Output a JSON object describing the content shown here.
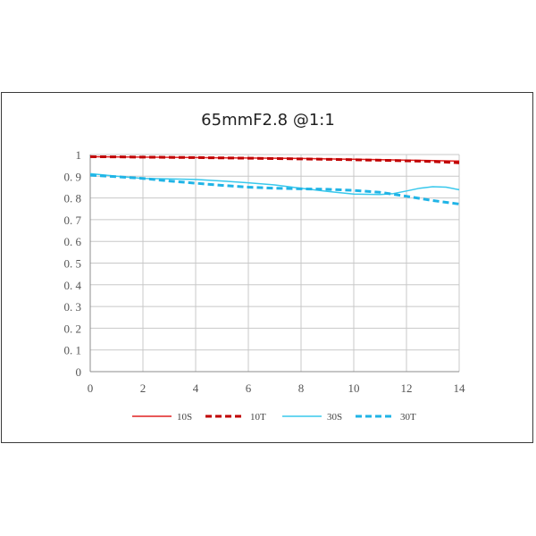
{
  "chart_data": {
    "type": "line",
    "title": "65mmF2.8 @1:1",
    "xlabel": "",
    "ylabel": "",
    "xlim": [
      0,
      14
    ],
    "ylim": [
      0,
      1
    ],
    "x_ticks": [
      0,
      2,
      4,
      6,
      8,
      10,
      12,
      14
    ],
    "y_ticks": [
      0,
      0.1,
      0.2,
      0.3,
      0.4,
      0.5,
      0.6,
      0.7,
      0.8,
      0.9,
      1
    ],
    "x_tick_labels": [
      "0",
      "2",
      "4",
      "6",
      "8",
      "10",
      "12",
      "14"
    ],
    "y_tick_labels": [
      "0",
      "0. 1",
      "0. 2",
      "0. 3",
      "0. 4",
      "0. 5",
      "0. 6",
      "0. 7",
      "0. 8",
      "0. 9",
      "1"
    ],
    "grid": true,
    "legend_position": "bottom",
    "series": [
      {
        "name": "10S",
        "color": "#e02020",
        "style": "solid",
        "x": [
          0,
          2,
          4,
          6,
          8,
          10,
          12,
          13,
          14
        ],
        "y": [
          0.99,
          0.988,
          0.986,
          0.984,
          0.982,
          0.978,
          0.974,
          0.972,
          0.97
        ]
      },
      {
        "name": "10T",
        "color": "#c00000",
        "style": "dashed",
        "x": [
          0,
          2,
          4,
          6,
          8,
          10,
          12,
          13,
          14
        ],
        "y": [
          0.99,
          0.988,
          0.986,
          0.983,
          0.98,
          0.976,
          0.971,
          0.968,
          0.962
        ]
      },
      {
        "name": "30S",
        "color": "#38c8ec",
        "style": "solid",
        "x": [
          0,
          1,
          2,
          3,
          4,
          5,
          6,
          7,
          8,
          9,
          10,
          11,
          11.5,
          12,
          12.5,
          13,
          13.5,
          14
        ],
        "y": [
          0.912,
          0.9,
          0.89,
          0.888,
          0.885,
          0.878,
          0.87,
          0.86,
          0.845,
          0.83,
          0.818,
          0.816,
          0.82,
          0.832,
          0.845,
          0.852,
          0.85,
          0.838
        ]
      },
      {
        "name": "30T",
        "color": "#20b4e6",
        "style": "dashed",
        "x": [
          0,
          1,
          2,
          3,
          4,
          5,
          6,
          7,
          8,
          9,
          10,
          11,
          12,
          13,
          14
        ],
        "y": [
          0.905,
          0.898,
          0.89,
          0.878,
          0.868,
          0.858,
          0.85,
          0.845,
          0.842,
          0.84,
          0.835,
          0.826,
          0.808,
          0.788,
          0.772
        ]
      }
    ]
  }
}
